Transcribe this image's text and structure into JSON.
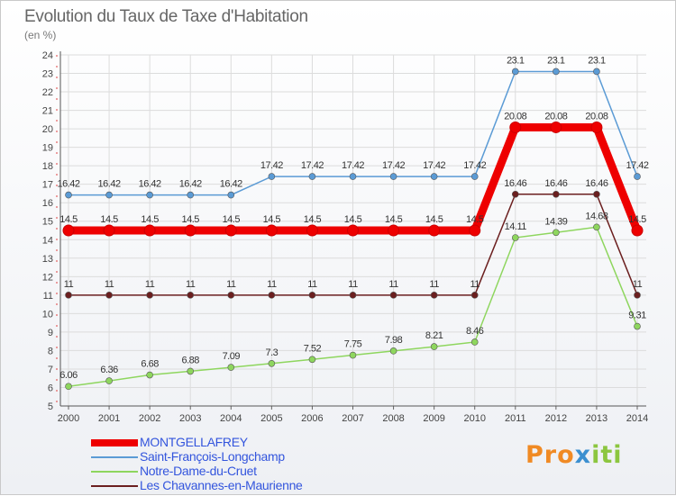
{
  "title": "Evolution du Taux de Taxe d'Habitation",
  "subtitle": "(en %)",
  "logo": {
    "text_a": "Pro",
    "text_b": "x",
    "text_c": "iti"
  },
  "colors": {
    "montgellafrey": "#ee0000",
    "saint_francois": "#5b9bd5",
    "notre_dame": "#8ed65e",
    "chavannes": "#6b1f1f"
  },
  "chart_data": {
    "type": "line",
    "title": "Evolution du Taux de Taxe d'Habitation",
    "ylabel": "(en %)",
    "xlabel": "",
    "x": [
      "2000",
      "2001",
      "2002",
      "2003",
      "2004",
      "2005",
      "2006",
      "2007",
      "2008",
      "2009",
      "2010",
      "2011",
      "2012",
      "2013",
      "2014"
    ],
    "ylim": [
      5,
      24
    ],
    "yticks": [
      5,
      6,
      7,
      8,
      9,
      10,
      11,
      12,
      13,
      14,
      15,
      16,
      17,
      18,
      19,
      20,
      21,
      22,
      23,
      24
    ],
    "grid": true,
    "legend_position": "bottom-left",
    "series": [
      {
        "name": "MONTGELLAFREY",
        "color": "#ee0000",
        "width": 9,
        "marker": 6,
        "values": [
          14.5,
          14.5,
          14.5,
          14.5,
          14.5,
          14.5,
          14.5,
          14.5,
          14.5,
          14.5,
          14.5,
          20.08,
          20.08,
          20.08,
          14.5
        ],
        "labels": [
          "14.5",
          "14.5",
          "14.5",
          "14.5",
          "14.5",
          "14.5",
          "14.5",
          "14.5",
          "14.5",
          "14.5",
          "14.5",
          "20.08",
          "20.08",
          "20.08",
          "14.5"
        ]
      },
      {
        "name": "Saint-François-Longchamp",
        "color": "#5b9bd5",
        "width": 1.5,
        "marker": 3.5,
        "values": [
          16.42,
          16.42,
          16.42,
          16.42,
          16.42,
          17.42,
          17.42,
          17.42,
          17.42,
          17.42,
          17.42,
          23.1,
          23.1,
          23.1,
          17.42
        ],
        "labels": [
          "16.42",
          "16.42",
          "16.42",
          "16.42",
          "16.42",
          "17.42",
          "17.42",
          "17.42",
          "17.42",
          "17.42",
          "17.42",
          "23.1",
          "23.1",
          "23.1",
          "17.42"
        ]
      },
      {
        "name": "Notre-Dame-du-Cruet",
        "color": "#8ed65e",
        "width": 1.5,
        "marker": 3.5,
        "values": [
          6.06,
          6.36,
          6.68,
          6.88,
          7.09,
          7.3,
          7.52,
          7.75,
          7.98,
          8.21,
          8.46,
          14.11,
          14.39,
          14.68,
          9.31
        ],
        "labels": [
          "6.06",
          "6.36",
          "6.68",
          "6.88",
          "7.09",
          "7.3",
          "7.52",
          "7.75",
          "7.98",
          "8.21",
          "8.46",
          "14.11",
          "14.39",
          "14.68",
          "9.31"
        ]
      },
      {
        "name": "Les Chavannes-en-Maurienne",
        "color": "#6b1f1f",
        "width": 1.5,
        "marker": 3.5,
        "values": [
          11,
          11,
          11,
          11,
          11,
          11,
          11,
          11,
          11,
          11,
          11,
          16.46,
          16.46,
          16.46,
          11
        ],
        "labels": [
          "11",
          "11",
          "11",
          "11",
          "11",
          "11",
          "11",
          "11",
          "11",
          "11",
          "11",
          "16.46",
          "16.46",
          "16.46",
          "11"
        ]
      }
    ]
  }
}
